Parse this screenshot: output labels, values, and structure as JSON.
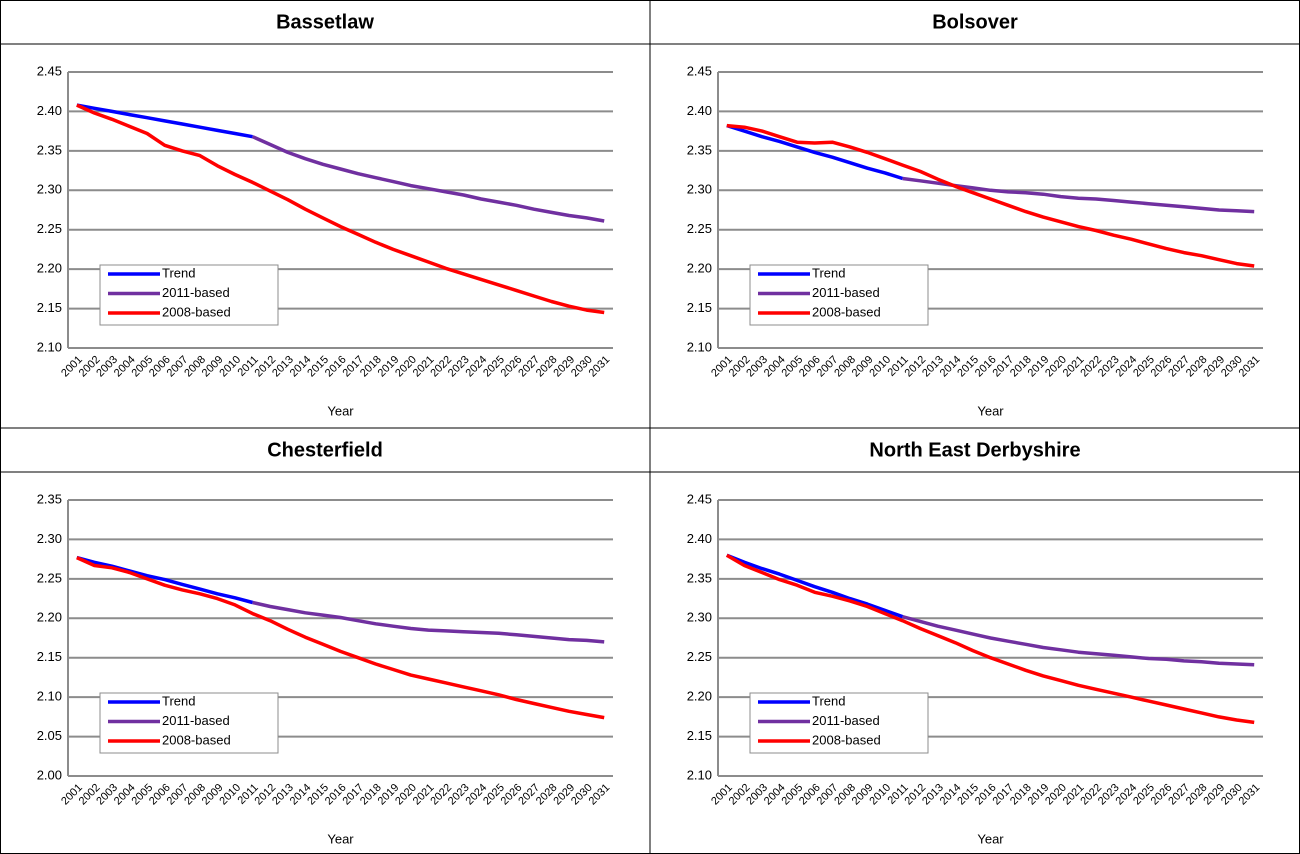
{
  "chart_data": [
    {
      "type": "line",
      "title": "Bassetlaw",
      "x_label": "Year",
      "categories": [
        "2001",
        "2002",
        "2003",
        "2004",
        "2005",
        "2006",
        "2007",
        "2008",
        "2009",
        "2010",
        "2011",
        "2012",
        "2013",
        "2014",
        "2015",
        "2016",
        "2017",
        "2018",
        "2019",
        "2020",
        "2021",
        "2022",
        "2023",
        "2024",
        "2025",
        "2026",
        "2027",
        "2028",
        "2029",
        "2030",
        "2031"
      ],
      "ylim": [
        2.1,
        2.45
      ],
      "yticks": [
        {
          "value": 2.1,
          "label": "2.10"
        },
        2.15,
        {
          "value": 2.2,
          "label": "2.20"
        },
        2.25,
        {
          "value": 2.3,
          "label": "2.30"
        },
        2.35,
        {
          "value": 2.4,
          "label": "2.40"
        },
        2.45
      ],
      "grid": true,
      "legend": "lower left",
      "series": [
        {
          "name": "Trend",
          "color": "#0000ff",
          "values": [
            2.408,
            2.404,
            2.4,
            2.396,
            2.392,
            2.388,
            2.384,
            2.38,
            2.376,
            2.372,
            2.368,
            null,
            null,
            null,
            null,
            null,
            null,
            null,
            null,
            null,
            null,
            null,
            null,
            null,
            null,
            null,
            null,
            null,
            null,
            null,
            null
          ]
        },
        {
          "name": "2011-based",
          "color": "#7030a0",
          "values": [
            null,
            null,
            null,
            null,
            null,
            null,
            null,
            null,
            null,
            null,
            2.368,
            2.358,
            2.348,
            2.34,
            2.333,
            2.327,
            2.321,
            2.316,
            2.311,
            2.306,
            2.302,
            2.298,
            2.294,
            2.289,
            2.285,
            2.281,
            2.276,
            2.272,
            2.268,
            2.265,
            2.261
          ]
        },
        {
          "name": "2008-based",
          "color": "#ff0000",
          "values": [
            2.408,
            2.398,
            2.39,
            2.381,
            2.372,
            2.357,
            2.35,
            2.344,
            2.331,
            2.32,
            2.31,
            2.299,
            2.288,
            2.276,
            2.265,
            2.254,
            2.244,
            2.234,
            2.225,
            2.217,
            2.209,
            2.201,
            2.194,
            2.187,
            2.18,
            2.173,
            2.166,
            2.159,
            2.153,
            2.148,
            2.145
          ]
        }
      ]
    },
    {
      "type": "line",
      "title": "Bolsover",
      "x_label": "Year",
      "categories": [
        "2001",
        "2002",
        "2003",
        "2004",
        "2005",
        "2006",
        "2007",
        "2008",
        "2009",
        "2010",
        "2011",
        "2012",
        "2013",
        "2014",
        "2015",
        "2016",
        "2017",
        "2018",
        "2019",
        "2020",
        "2021",
        "2022",
        "2023",
        "2024",
        "2025",
        "2026",
        "2027",
        "2028",
        "2029",
        "2030",
        "2031"
      ],
      "ylim": [
        2.1,
        2.45
      ],
      "yticks": [
        {
          "value": 2.1,
          "label": "2.10"
        },
        2.15,
        {
          "value": 2.2,
          "label": "2.20"
        },
        2.25,
        {
          "value": 2.3,
          "label": "2.30"
        },
        2.35,
        {
          "value": 2.4,
          "label": "2.40"
        },
        2.45
      ],
      "grid": true,
      "legend": "lower left",
      "series": [
        {
          "name": "Trend",
          "color": "#0000ff",
          "values": [
            2.382,
            2.375,
            2.368,
            2.362,
            2.355,
            2.348,
            2.342,
            2.335,
            2.328,
            2.322,
            2.315,
            null,
            null,
            null,
            null,
            null,
            null,
            null,
            null,
            null,
            null,
            null,
            null,
            null,
            null,
            null,
            null,
            null,
            null,
            null,
            null
          ]
        },
        {
          "name": "2011-based",
          "color": "#7030a0",
          "values": [
            null,
            null,
            null,
            null,
            null,
            null,
            null,
            null,
            null,
            null,
            2.315,
            2.312,
            2.309,
            2.306,
            2.303,
            2.3,
            2.298,
            2.297,
            2.295,
            2.292,
            2.29,
            2.289,
            2.287,
            2.285,
            2.283,
            2.281,
            2.279,
            2.277,
            2.275,
            2.274,
            2.273
          ]
        },
        {
          "name": "2008-based",
          "color": "#ff0000",
          "values": [
            2.382,
            2.38,
            2.375,
            2.368,
            2.361,
            2.36,
            2.361,
            2.355,
            2.348,
            2.34,
            2.332,
            2.324,
            2.314,
            2.305,
            2.297,
            2.289,
            2.281,
            2.273,
            2.266,
            2.26,
            2.254,
            2.249,
            2.243,
            2.238,
            2.232,
            2.226,
            2.221,
            2.217,
            2.212,
            2.207,
            2.204
          ]
        }
      ]
    },
    {
      "type": "line",
      "title": "Chesterfield",
      "x_label": "Year",
      "categories": [
        "2001",
        "2002",
        "2003",
        "2004",
        "2005",
        "2006",
        "2007",
        "2008",
        "2009",
        "2010",
        "2011",
        "2012",
        "2013",
        "2014",
        "2015",
        "2016",
        "2017",
        "2018",
        "2019",
        "2020",
        "2021",
        "2022",
        "2023",
        "2024",
        "2025",
        "2026",
        "2027",
        "2028",
        "2029",
        "2030",
        "2031"
      ],
      "ylim": [
        2.0,
        2.35
      ],
      "yticks": [
        {
          "value": 2.0,
          "label": "2.00"
        },
        2.05,
        {
          "value": 2.1,
          "label": "2.10"
        },
        2.15,
        {
          "value": 2.2,
          "label": "2.20"
        },
        2.25,
        {
          "value": 2.3,
          "label": "2.30"
        },
        2.35
      ],
      "grid": true,
      "legend": "lower left",
      "series": [
        {
          "name": "Trend",
          "color": "#0000ff",
          "values": [
            2.277,
            2.271,
            2.266,
            2.26,
            2.254,
            2.249,
            2.243,
            2.237,
            2.231,
            2.226,
            2.22,
            null,
            null,
            null,
            null,
            null,
            null,
            null,
            null,
            null,
            null,
            null,
            null,
            null,
            null,
            null,
            null,
            null,
            null,
            null,
            null
          ]
        },
        {
          "name": "2011-based",
          "color": "#7030a0",
          "values": [
            null,
            null,
            null,
            null,
            null,
            null,
            null,
            null,
            null,
            null,
            2.22,
            2.215,
            2.211,
            2.207,
            2.204,
            2.201,
            2.197,
            2.193,
            2.19,
            2.187,
            2.185,
            2.184,
            2.183,
            2.182,
            2.181,
            2.179,
            2.177,
            2.175,
            2.173,
            2.172,
            2.17
          ]
        },
        {
          "name": "2008-based",
          "color": "#ff0000",
          "values": [
            2.277,
            2.267,
            2.264,
            2.258,
            2.25,
            2.242,
            2.236,
            2.231,
            2.225,
            2.217,
            2.206,
            2.197,
            2.186,
            2.176,
            2.167,
            2.158,
            2.15,
            2.142,
            2.135,
            2.128,
            2.123,
            2.118,
            2.113,
            2.108,
            2.103,
            2.097,
            2.092,
            2.087,
            2.082,
            2.078,
            2.074
          ]
        }
      ]
    },
    {
      "type": "line",
      "title": "North East Derbyshire",
      "x_label": "Year",
      "categories": [
        "2001",
        "2002",
        "2003",
        "2004",
        "2005",
        "2006",
        "2007",
        "2008",
        "2009",
        "2010",
        "2011",
        "2012",
        "2013",
        "2014",
        "2015",
        "2016",
        "2017",
        "2018",
        "2019",
        "2020",
        "2021",
        "2022",
        "2023",
        "2024",
        "2025",
        "2026",
        "2027",
        "2028",
        "2029",
        "2030",
        "2031"
      ],
      "ylim": [
        2.1,
        2.45
      ],
      "yticks": [
        {
          "value": 2.1,
          "label": "2.10"
        },
        2.15,
        {
          "value": 2.2,
          "label": "2.20"
        },
        2.25,
        {
          "value": 2.3,
          "label": "2.30"
        },
        2.35,
        {
          "value": 2.4,
          "label": "2.40"
        },
        2.45
      ],
      "grid": true,
      "legend": "lower left",
      "series": [
        {
          "name": "Trend",
          "color": "#0000ff",
          "values": [
            2.38,
            2.371,
            2.363,
            2.356,
            2.348,
            2.34,
            2.333,
            2.325,
            2.318,
            2.31,
            2.302,
            null,
            null,
            null,
            null,
            null,
            null,
            null,
            null,
            null,
            null,
            null,
            null,
            null,
            null,
            null,
            null,
            null,
            null,
            null,
            null
          ]
        },
        {
          "name": "2011-based",
          "color": "#7030a0",
          "values": [
            null,
            null,
            null,
            null,
            null,
            null,
            null,
            null,
            null,
            null,
            2.302,
            2.296,
            2.29,
            2.285,
            2.28,
            2.275,
            2.271,
            2.267,
            2.263,
            2.26,
            2.257,
            2.255,
            2.253,
            2.251,
            2.249,
            2.248,
            2.246,
            2.245,
            2.243,
            2.242,
            2.241
          ]
        },
        {
          "name": "2008-based",
          "color": "#ff0000",
          "values": [
            2.38,
            2.367,
            2.358,
            2.349,
            2.342,
            2.333,
            2.328,
            2.322,
            2.315,
            2.306,
            2.297,
            2.287,
            2.278,
            2.269,
            2.259,
            2.25,
            2.242,
            2.234,
            2.227,
            2.221,
            2.215,
            2.21,
            2.205,
            2.2,
            2.195,
            2.19,
            2.185,
            2.18,
            2.175,
            2.171,
            2.168
          ]
        }
      ]
    }
  ]
}
